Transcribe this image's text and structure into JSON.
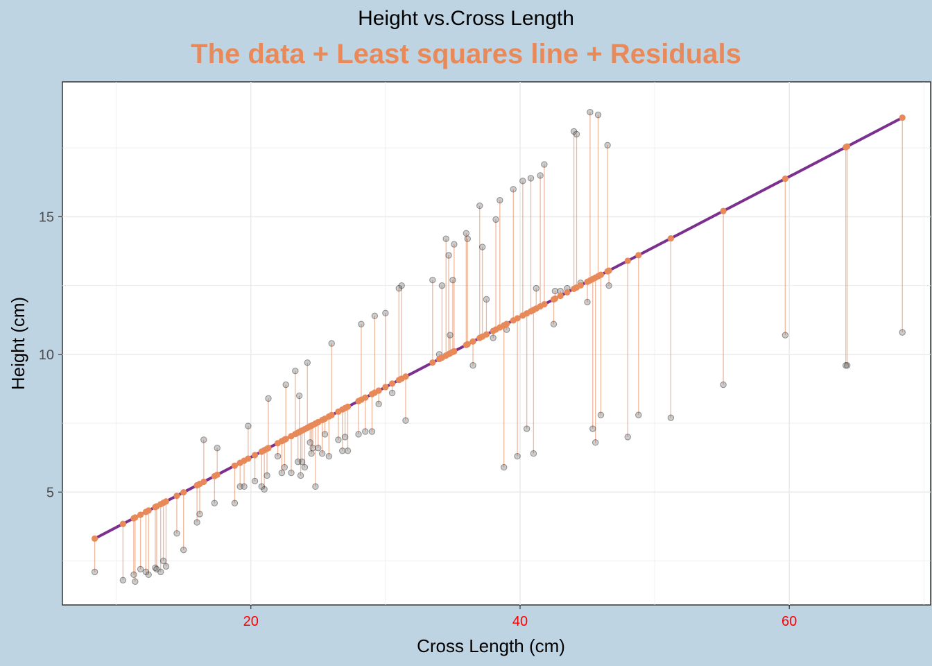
{
  "chart_data": {
    "type": "scatter",
    "title": "Height vs.Cross Length",
    "subtitle": "The data + Least squares line + Residuals",
    "xlabel": "Cross Length (cm)",
    "ylabel": "Height (cm)",
    "xlim": [
      6,
      70.5
    ],
    "ylim": [
      0.9,
      19.9
    ],
    "x_ticks": [
      20,
      40,
      60
    ],
    "y_ticks": [
      5,
      10,
      15
    ],
    "grid": true,
    "legend": "none",
    "fit_line": {
      "intercept": 1.17,
      "slope": 0.2548,
      "x_range": [
        8.4,
        68.4
      ]
    },
    "colors": {
      "background": "#bfd4e3",
      "panel": "#ffffff",
      "fit_line": "#7b2f8e",
      "fitted_points": "#e8895a",
      "residuals": "#e8895a",
      "data_points": "#555555",
      "x_tick_labels": "#ff0000",
      "y_tick_labels": "#4d4d4d",
      "subtitle": "#e8895a",
      "grid": "#ebebeb"
    },
    "series": [
      {
        "name": "",
        "x": [
          8.4,
          10.5,
          11.3,
          11.4,
          11.8,
          12.2,
          12.4,
          12.9,
          13.0,
          13.3,
          13.5,
          13.7,
          14.5,
          15.0,
          16.0,
          16.2,
          16.5,
          17.3,
          17.5,
          18.8,
          19.2,
          19.5,
          19.8,
          20.3,
          20.8,
          21.0,
          21.2,
          21.3,
          22.0,
          22.3,
          22.5,
          22.6,
          23.0,
          23.3,
          23.5,
          23.6,
          23.7,
          23.8,
          24.0,
          24.2,
          24.4,
          24.5,
          24.6,
          24.8,
          25.0,
          25.3,
          25.5,
          25.8,
          26.0,
          26.5,
          26.8,
          27.0,
          27.2,
          28.0,
          28.2,
          28.5,
          29.0,
          29.2,
          29.5,
          30.0,
          30.5,
          31.0,
          31.2,
          31.5,
          33.5,
          34.0,
          34.2,
          34.5,
          34.7,
          34.8,
          35.0,
          35.1,
          36.0,
          36.1,
          36.5,
          37.0,
          37.2,
          37.5,
          38.0,
          38.2,
          38.5,
          38.8,
          39.0,
          39.5,
          39.8,
          40.2,
          40.5,
          40.8,
          41.0,
          41.2,
          41.5,
          41.8,
          42.5,
          42.6,
          43.0,
          43.5,
          44.0,
          44.2,
          44.5,
          45.0,
          45.2,
          45.4,
          45.6,
          45.8,
          46.0,
          46.5,
          46.6,
          48.0,
          48.8,
          51.2,
          55.1,
          59.7,
          64.2,
          64.3,
          68.4
        ],
        "y": [
          2.1,
          1.8,
          2.0,
          1.75,
          2.2,
          2.1,
          2.0,
          2.25,
          2.2,
          2.1,
          2.5,
          2.3,
          3.5,
          2.9,
          3.9,
          4.2,
          6.9,
          4.6,
          6.6,
          4.6,
          5.2,
          5.2,
          7.4,
          5.4,
          5.2,
          5.1,
          5.6,
          8.4,
          6.3,
          5.7,
          5.9,
          8.9,
          5.7,
          9.4,
          6.1,
          8.5,
          5.6,
          6.1,
          5.9,
          9.7,
          6.8,
          6.4,
          6.6,
          5.2,
          6.6,
          6.4,
          7.1,
          6.3,
          10.4,
          6.9,
          6.5,
          7.0,
          6.5,
          7.1,
          11.1,
          7.2,
          7.2,
          11.4,
          8.2,
          11.5,
          8.6,
          12.4,
          12.5,
          7.6,
          12.7,
          10.0,
          12.5,
          14.2,
          13.6,
          10.7,
          12.7,
          14.0,
          14.4,
          14.2,
          9.6,
          15.4,
          13.9,
          12.0,
          10.6,
          14.9,
          15.6,
          5.9,
          10.9,
          16.0,
          6.3,
          16.3,
          7.3,
          16.4,
          6.4,
          12.4,
          16.5,
          16.9,
          11.1,
          12.3,
          12.3,
          12.4,
          18.1,
          18.0,
          12.6,
          11.9,
          18.8,
          7.3,
          6.8,
          18.7,
          7.8,
          17.6,
          12.5,
          7.0,
          7.8,
          7.7,
          8.9,
          10.7,
          9.6,
          9.6,
          10.8
        ]
      }
    ]
  }
}
